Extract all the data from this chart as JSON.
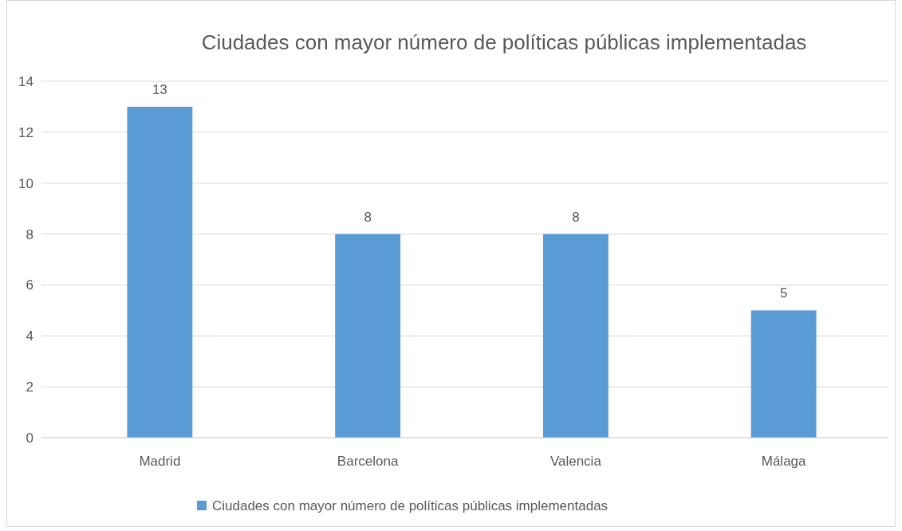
{
  "chart_data": {
    "type": "bar",
    "title": "Ciudades con mayor número de políticas públicas implementadas",
    "categories": [
      "Madrid",
      "Barcelona",
      "Valencia",
      "Málaga"
    ],
    "series": [
      {
        "name": "Ciudades con mayor número de políticas públicas implementadas",
        "color": "#5b9bd5",
        "values": [
          13,
          8,
          8,
          5
        ]
      }
    ],
    "ylim": [
      0,
      14
    ],
    "yticks": [
      0,
      2,
      4,
      6,
      8,
      10,
      12,
      14
    ],
    "grid": "y",
    "legend": "bottom",
    "data_labels": true
  }
}
